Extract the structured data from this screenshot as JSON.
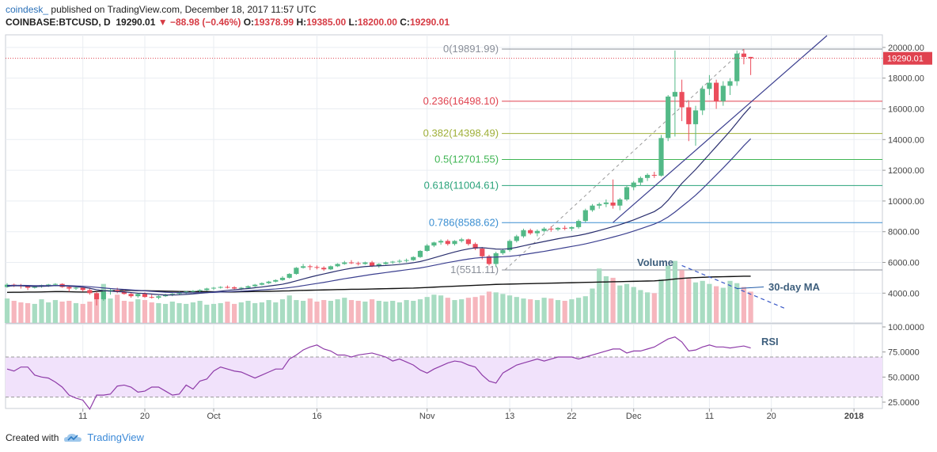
{
  "header": {
    "author": "coindesk_",
    "published": "published on TradingView.com, December 18, 2017 11:57 UTC",
    "symbol": "COINBASE:BTCUSD, D",
    "close_value": "19290.01",
    "change": "▼ −88.98 (−0.46%)",
    "open_label": "O:",
    "open_value": "19378.99",
    "high_label": "H:",
    "high_value": "19385.00",
    "low_label": "L:",
    "low_value": "18200.00",
    "close_label": "C:",
    "close_value2": "19290.01"
  },
  "footer": {
    "created_with": "Created with",
    "brand": "TradingView"
  },
  "colors": {
    "up": "#53b987",
    "down": "#eb4d5c",
    "vol_up": "#a8dcc2",
    "vol_down": "#f6b6bd",
    "ma": "#2a2f6e",
    "rsi": "#8e3ba8",
    "rsi_band": "#f1e2fb",
    "grid": "#e9edf2"
  },
  "chart_data": {
    "type": "candlestick",
    "price_axis": {
      "min": 3000,
      "max": 20500,
      "ticks": [
        "20000.00",
        "18000.00",
        "16000.00",
        "14000.00",
        "12000.00",
        "10000.00",
        "8000.00",
        "6000.00",
        "4000.00"
      ],
      "tick_values": [
        20000,
        18000,
        16000,
        14000,
        12000,
        10000,
        8000,
        6000,
        4000
      ]
    },
    "last_price_label": "19290.01",
    "last_price": 19290.01,
    "x_ticks": [
      "11",
      "20",
      "Oct",
      "16",
      "Nov",
      "13",
      "22",
      "Dec",
      "11",
      "20",
      "2018"
    ],
    "x_tick_days": [
      11,
      20,
      30,
      45,
      61,
      73,
      82,
      91,
      102,
      111,
      123
    ],
    "ohlc": [
      [
        4400,
        4650,
        4350,
        4550
      ],
      [
        4550,
        4620,
        4400,
        4500
      ],
      [
        4500,
        4600,
        4300,
        4450
      ],
      [
        4450,
        4520,
        4200,
        4350
      ],
      [
        4350,
        4500,
        4300,
        4450
      ],
      [
        4450,
        4550,
        4350,
        4520
      ],
      [
        4520,
        4600,
        4400,
        4560
      ],
      [
        4560,
        4650,
        4450,
        4600
      ],
      [
        4600,
        4640,
        4350,
        4400
      ],
      [
        4400,
        4450,
        4100,
        4300
      ],
      [
        4300,
        4420,
        4200,
        4350
      ],
      [
        4350,
        4400,
        4100,
        4200
      ],
      [
        4200,
        4300,
        3900,
        4000
      ],
      [
        4000,
        4100,
        3200,
        3600
      ],
      [
        3600,
        4200,
        3500,
        4100
      ],
      [
        4100,
        4300,
        3900,
        4200
      ],
      [
        4200,
        4350,
        4000,
        4100
      ],
      [
        4100,
        4250,
        3900,
        3950
      ],
      [
        3950,
        4050,
        3700,
        3800
      ],
      [
        3800,
        4000,
        3700,
        3950
      ],
      [
        3950,
        4050,
        3700,
        3750
      ],
      [
        3750,
        3900,
        3650,
        3700
      ],
      [
        3700,
        3850,
        3600,
        3800
      ],
      [
        3800,
        3950,
        3750,
        3900
      ],
      [
        3900,
        4000,
        3800,
        3950
      ],
      [
        3950,
        4100,
        3900,
        4050
      ],
      [
        4050,
        4150,
        3950,
        4100
      ],
      [
        4100,
        4200,
        4000,
        4150
      ],
      [
        4150,
        4250,
        4050,
        4200
      ],
      [
        4200,
        4350,
        4150,
        4300
      ],
      [
        4300,
        4400,
        4200,
        4350
      ],
      [
        4350,
        4450,
        4300,
        4400
      ],
      [
        4400,
        4500,
        4300,
        4380
      ],
      [
        4380,
        4450,
        4250,
        4300
      ],
      [
        4300,
        4400,
        4200,
        4350
      ],
      [
        4350,
        4500,
        4300,
        4450
      ],
      [
        4450,
        4600,
        4400,
        4550
      ],
      [
        4550,
        4700,
        4500,
        4650
      ],
      [
        4650,
        4800,
        4600,
        4750
      ],
      [
        4750,
        4900,
        4700,
        4850
      ],
      [
        4850,
        5100,
        4800,
        5000
      ],
      [
        5000,
        5300,
        4950,
        5250
      ],
      [
        5250,
        5700,
        5200,
        5650
      ],
      [
        5650,
        5900,
        5600,
        5750
      ],
      [
        5750,
        5850,
        5500,
        5700
      ],
      [
        5700,
        5800,
        5550,
        5650
      ],
      [
        5650,
        5750,
        5450,
        5550
      ],
      [
        5550,
        5800,
        5500,
        5750
      ],
      [
        5750,
        5950,
        5700,
        5900
      ],
      [
        5900,
        6100,
        5850,
        6000
      ],
      [
        6000,
        6150,
        5900,
        5950
      ],
      [
        5950,
        6050,
        5800,
        5900
      ],
      [
        5900,
        6050,
        5850,
        6000
      ],
      [
        6000,
        6100,
        5700,
        5750
      ],
      [
        5750,
        5950,
        5650,
        5900
      ],
      [
        5900,
        6050,
        5850,
        6000
      ],
      [
        6000,
        6100,
        5900,
        6050
      ],
      [
        6050,
        6200,
        5950,
        6100
      ],
      [
        6100,
        6250,
        6000,
        6150
      ],
      [
        6150,
        6400,
        6100,
        6350
      ],
      [
        6350,
        6800,
        6300,
        6750
      ],
      [
        6750,
        7200,
        6700,
        7100
      ],
      [
        7100,
        7350,
        7000,
        7300
      ],
      [
        7300,
        7500,
        7150,
        7400
      ],
      [
        7400,
        7500,
        7100,
        7200
      ],
      [
        7200,
        7450,
        7100,
        7400
      ],
      [
        7400,
        7600,
        7300,
        7500
      ],
      [
        7500,
        7550,
        7100,
        7200
      ],
      [
        7200,
        7300,
        6800,
        6900
      ],
      [
        6900,
        7000,
        6200,
        6400
      ],
      [
        6400,
        6500,
        5800,
        5900
      ],
      [
        5900,
        6700,
        5700,
        6600
      ],
      [
        6600,
        6900,
        6500,
        6800
      ],
      [
        6800,
        7500,
        6700,
        7400
      ],
      [
        7400,
        7800,
        7300,
        7700
      ],
      [
        7700,
        8200,
        7600,
        8100
      ],
      [
        8100,
        8200,
        7800,
        7900
      ],
      [
        7900,
        8150,
        7700,
        8050
      ],
      [
        8050,
        8300,
        7950,
        8200
      ],
      [
        8200,
        8350,
        8000,
        8150
      ],
      [
        8150,
        8300,
        8050,
        8250
      ],
      [
        8250,
        8400,
        8100,
        8200
      ],
      [
        8200,
        8350,
        8050,
        8300
      ],
      [
        8300,
        8800,
        8200,
        8700
      ],
      [
        8700,
        9500,
        8600,
        9400
      ],
      [
        9400,
        9800,
        9300,
        9700
      ],
      [
        9700,
        9900,
        9500,
        9800
      ],
      [
        9800,
        10100,
        9600,
        9900
      ],
      [
        9900,
        11400,
        9500,
        9700
      ],
      [
        9700,
        10200,
        9400,
        10100
      ],
      [
        10100,
        11000,
        10000,
        10900
      ],
      [
        10900,
        11300,
        10700,
        11200
      ],
      [
        11200,
        11600,
        11000,
        11500
      ],
      [
        11500,
        11800,
        11300,
        11700
      ],
      [
        11700,
        11900,
        11500,
        11650
      ],
      [
        11650,
        14300,
        11600,
        14100
      ],
      [
        14100,
        16900,
        13900,
        16800
      ],
      [
        16800,
        19800,
        14200,
        17100
      ],
      [
        17100,
        17900,
        15200,
        16100
      ],
      [
        16100,
        16500,
        13900,
        15000
      ],
      [
        15000,
        16200,
        13600,
        15900
      ],
      [
        15900,
        17500,
        15600,
        17300
      ],
      [
        17300,
        18200,
        16900,
        17700
      ],
      [
        17700,
        17900,
        16000,
        16500
      ],
      [
        16500,
        17800,
        16200,
        17500
      ],
      [
        17500,
        18000,
        16900,
        17800
      ],
      [
        17800,
        19800,
        17500,
        19600
      ],
      [
        19600,
        19900,
        18900,
        19380
      ],
      [
        19380,
        19385,
        18200,
        19290
      ]
    ],
    "ma_short": [
      4450,
      4480,
      4480,
      4450,
      4430,
      4440,
      4460,
      4490,
      4480,
      4450,
      4420,
      4380,
      4320,
      4220,
      4160,
      4130,
      4100,
      4080,
      4040,
      4000,
      3980,
      3940,
      3900,
      3880,
      3880,
      3890,
      3920,
      3950,
      3990,
      4030,
      4080,
      4130,
      4180,
      4220,
      4260,
      4300,
      4350,
      4400,
      4460,
      4520,
      4580,
      4680,
      4800,
      4920,
      5040,
      5150,
      5250,
      5350,
      5450,
      5540,
      5620,
      5680,
      5730,
      5760,
      5780,
      5800,
      5830,
      5870,
      5920,
      5980,
      6060,
      6170,
      6300,
      6430,
      6560,
      6680,
      6790,
      6880,
      6950,
      6960,
      6920,
      6870,
      6860,
      6900,
      6980,
      7080,
      7180,
      7270,
      7360,
      7450,
      7540,
      7620,
      7690,
      7760,
      7850,
      7960,
      8080,
      8200,
      8330,
      8460,
      8610,
      8770,
      8950,
      9130,
      9310,
      9600,
      10050,
      10600,
      11150,
      11600,
      12050,
      12550,
      13050,
      13550,
      14050,
      14550,
      15100,
      15650,
      16150
    ],
    "ma_long": [
      4500,
      4510,
      4510,
      4500,
      4490,
      4490,
      4490,
      4500,
      4500,
      4490,
      4470,
      4450,
      4420,
      4380,
      4340,
      4300,
      4270,
      4240,
      4210,
      4180,
      4150,
      4120,
      4090,
      4060,
      4040,
      4030,
      4020,
      4020,
      4030,
      4040,
      4050,
      4070,
      4090,
      4110,
      4130,
      4150,
      4180,
      4210,
      4240,
      4270,
      4310,
      4360,
      4420,
      4490,
      4560,
      4630,
      4700,
      4780,
      4860,
      4940,
      5010,
      5080,
      5150,
      5220,
      5280,
      5340,
      5400,
      5460,
      5520,
      5580,
      5640,
      5720,
      5810,
      5900,
      5990,
      6070,
      6150,
      6220,
      6280,
      6320,
      6340,
      6350,
      6370,
      6400,
      6450,
      6510,
      6580,
      6650,
      6720,
      6800,
      6880,
      6960,
      7040,
      7120,
      7210,
      7310,
      7420,
      7530,
      7650,
      7770,
      7900,
      8040,
      8190,
      8340,
      8500,
      8700,
      8960,
      9280,
      9640,
      10000,
      10380,
      10800,
      11250,
      11700,
      12150,
      12620,
      13100,
      13600,
      14050
    ],
    "fib_levels": [
      {
        "label": "0(19891.99)",
        "value": 19891.99,
        "color": "#8a8f99"
      },
      {
        "label": "0.236(16498.10)",
        "value": 16498.1,
        "color": "#e0424f"
      },
      {
        "label": "0.382(14398.49)",
        "value": 14398.49,
        "color": "#9fb03a"
      },
      {
        "label": "0.5(12701.55)",
        "value": 12701.55,
        "color": "#3fb553"
      },
      {
        "label": "0.618(11004.61)",
        "value": 11004.61,
        "color": "#2aa37a"
      },
      {
        "label": "0.786(8588.62)",
        "value": 8588.62,
        "color": "#3a8ed1"
      },
      {
        "label": "1(5511.11)",
        "value": 5511.11,
        "color": "#8a8f99"
      }
    ],
    "annotations": {
      "volume": "Volume",
      "ma30": "30-day MA",
      "rsi": "RSI"
    },
    "volume_ma30": [
      4050,
      4060,
      4060,
      4070,
      4070,
      4080,
      4090,
      4100,
      4100,
      4090,
      4080,
      4070,
      4080,
      4110,
      4140,
      4160,
      4170,
      4180,
      4180,
      4170,
      4160,
      4150,
      4140,
      4130,
      4120,
      4110,
      4100,
      4100,
      4100,
      4100,
      4090,
      4080,
      4080,
      4080,
      4090,
      4100,
      4110,
      4110,
      4120,
      4130,
      4140,
      4150,
      4170,
      4180,
      4190,
      4200,
      4210,
      4220,
      4230,
      4240,
      4250,
      4250,
      4260,
      4270,
      4280,
      4290,
      4300,
      4310,
      4320,
      4330,
      4350,
      4370,
      4390,
      4410,
      4430,
      4450,
      4470,
      4490,
      4510,
      4530,
      4550,
      4570,
      4580,
      4590,
      4600,
      4610,
      4620,
      4630,
      4640,
      4650,
      4660,
      4670,
      4680,
      4690,
      4700,
      4710,
      4720,
      4730,
      4740,
      4750,
      4760,
      4770,
      4780,
      4790,
      4800,
      4830,
      4870,
      4920,
      4960,
      4990,
      5010,
      5030,
      5050,
      5060,
      5070,
      5080,
      5090,
      5100,
      5100
    ],
    "volume_ticks": [
      "4000.00",
      "6000.00"
    ],
    "volume": [
      3650,
      3500,
      3400,
      3350,
      3300,
      3600,
      3400,
      3550,
      3450,
      3500,
      3350,
      3300,
      3450,
      3600,
      4600,
      3650,
      3900,
      3500,
      3450,
      3600,
      3550,
      3400,
      3350,
      3300,
      3450,
      3350,
      3300,
      3400,
      3500,
      3250,
      3300,
      3350,
      3450,
      3300,
      3400,
      3500,
      3350,
      3400,
      3550,
      3400,
      3600,
      3850,
      3550,
      3500,
      3650,
      3450,
      3550,
      3500,
      3600,
      3700,
      3550,
      3500,
      3450,
      3600,
      3500,
      3450,
      3500,
      3400,
      3550,
      3500,
      3600,
      3750,
      3900,
      3850,
      3700,
      3550,
      3600,
      3700,
      3750,
      3850,
      4100,
      4050,
      3950,
      3850,
      3750,
      3650,
      3600,
      3550,
      3700,
      3650,
      3550,
      3500,
      3600,
      3700,
      3800,
      4300,
      5600,
      5100,
      5000,
      4500,
      4600,
      4400,
      4200,
      4050,
      4000,
      4900,
      5800,
      6100,
      5500,
      5000,
      4700,
      4800,
      4600,
      4450,
      4350,
      4800,
      4650,
      4400,
      4100
    ],
    "rsi_axis": {
      "ticks": [
        "100.0000",
        "75.0000",
        "50.0000",
        "25.0000"
      ],
      "tick_values": [
        100,
        75,
        50,
        25
      ],
      "band": [
        30,
        70
      ]
    },
    "rsi": [
      58,
      56,
      60,
      60,
      52,
      50,
      49,
      45,
      40,
      32,
      29,
      27,
      18,
      32,
      32,
      33,
      41,
      42,
      40,
      35,
      36,
      40,
      40,
      36,
      32,
      33,
      42,
      38,
      46,
      48,
      56,
      60,
      58,
      56,
      55,
      52,
      49,
      52,
      55,
      58,
      58,
      68,
      72,
      77,
      80,
      82,
      78,
      76,
      72,
      72,
      70,
      72,
      73,
      74,
      72,
      70,
      66,
      68,
      65,
      62,
      57,
      54,
      58,
      61,
      64,
      66,
      65,
      62,
      60,
      52,
      46,
      44,
      54,
      58,
      62,
      64,
      66,
      68,
      66,
      68,
      70,
      70,
      70,
      68,
      70,
      72,
      74,
      76,
      78,
      78,
      74,
      76,
      76,
      78,
      80,
      84,
      88,
      90,
      85,
      76,
      77,
      80,
      82,
      80,
      80,
      79,
      80,
      81,
      79
    ]
  }
}
